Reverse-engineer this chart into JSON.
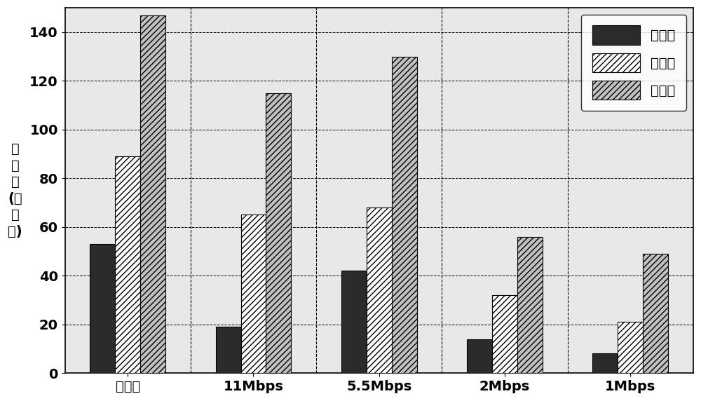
{
  "categories": [
    "多速率",
    "11Mbps",
    "5.5Mbps",
    "2Mbps",
    "1Mbps"
  ],
  "min_values": [
    53,
    19,
    42,
    14,
    8
  ],
  "avg_values": [
    89,
    65,
    68,
    32,
    21
  ],
  "max_values": [
    147,
    115,
    130,
    56,
    49
  ],
  "legend_labels": [
    "最小値",
    "平均値",
    "最大値"
  ],
  "ylabel_lines": [
    "吞",
    "吐",
    "量",
    "(包",
    "／",
    "秒)"
  ],
  "ylim": [
    0,
    150
  ],
  "yticks": [
    0,
    20,
    40,
    60,
    80,
    100,
    120,
    140
  ],
  "bar_width": 0.2,
  "color_min": "#2b2b2b",
  "figsize": [
    10.0,
    5.72
  ],
  "dpi": 100
}
